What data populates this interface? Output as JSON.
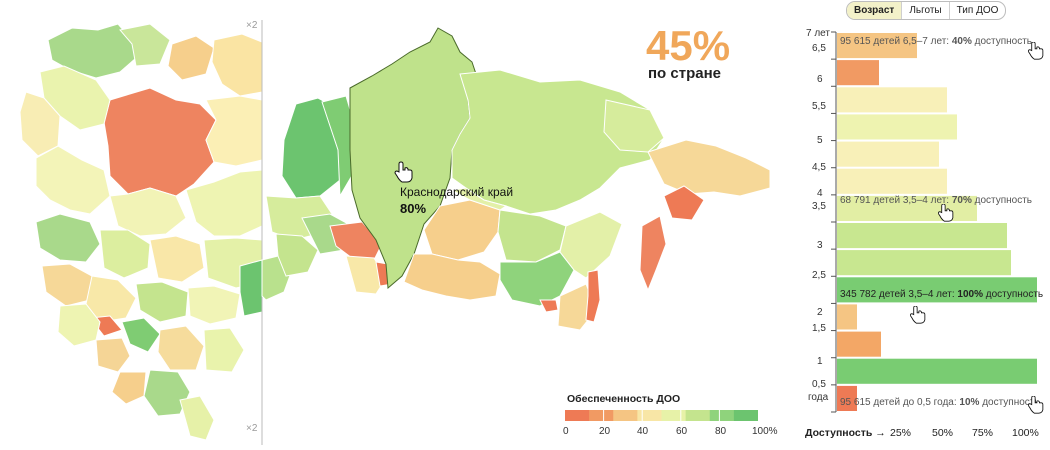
{
  "headline": {
    "value": "45%",
    "label": "по стране"
  },
  "map": {
    "hover_region": "Краснодарский край",
    "hover_value": "80%",
    "scale_markers": [
      "×2",
      "×2"
    ]
  },
  "legend": {
    "title": "Обеспеченность ДОО",
    "ticks": [
      "0",
      "20",
      "40",
      "60",
      "80",
      "100%"
    ],
    "colors": [
      "#ee7a55",
      "#f19a63",
      "#f5c583",
      "#f8e6a6",
      "#e7f2a8",
      "#c4e48e",
      "#8fd37c",
      "#6cc46f"
    ]
  },
  "tabs": [
    {
      "label": "Возраст",
      "active": true
    },
    {
      "label": "Льготы",
      "active": false
    },
    {
      "label": "Тип ДОО",
      "active": false
    }
  ],
  "chart_data": {
    "type": "bar",
    "orientation": "horizontal",
    "y_tick_labels": [
      "7 лет",
      "6,5",
      "6",
      "5,5",
      "5",
      "4,5",
      "4",
      "3,5",
      "3",
      "2,5",
      "2",
      "1,5",
      "1",
      "0,5",
      "года"
    ],
    "x_tick_labels": [
      "25%",
      "50%",
      "75%",
      "100%"
    ],
    "xlabel": "Доступность →",
    "xlim": [
      0,
      100
    ],
    "bars": [
      {
        "age_from": 6.5,
        "age_to": 7.0,
        "value": 40,
        "color": "#f5c583"
      },
      {
        "age_from": 6.0,
        "age_to": 6.5,
        "value": 21,
        "color": "#f19a63"
      },
      {
        "age_from": 5.5,
        "age_to": 6.0,
        "value": 55,
        "color": "#f8f0b8"
      },
      {
        "age_from": 5.0,
        "age_to": 5.5,
        "value": 60,
        "color": "#eef3b0"
      },
      {
        "age_from": 4.5,
        "age_to": 5.0,
        "value": 51,
        "color": "#f8f0b8"
      },
      {
        "age_from": 4.0,
        "age_to": 4.5,
        "value": 55,
        "color": "#f8f0b8"
      },
      {
        "age_from": 3.5,
        "age_to": 4.0,
        "value": 70,
        "color": "#e2eea4"
      },
      {
        "age_from": 3.0,
        "age_to": 3.5,
        "value": 85,
        "color": "#c8e790"
      },
      {
        "age_from": 2.5,
        "age_to": 3.0,
        "value": 87,
        "color": "#c8e790"
      },
      {
        "age_from": 2.0,
        "age_to": 2.5,
        "value": 100,
        "color": "#79cc72"
      },
      {
        "age_from": 1.5,
        "age_to": 2.0,
        "value": 10,
        "color": "#f5c583"
      },
      {
        "age_from": 1.0,
        "age_to": 1.5,
        "value": 22,
        "color": "#f3a766"
      },
      {
        "age_from": 0.5,
        "age_to": 1.0,
        "value": 100,
        "color": "#79cc72"
      },
      {
        "age_from": 0.0,
        "age_to": 0.5,
        "value": 10,
        "color": "#ee7a55"
      }
    ],
    "annotations": [
      {
        "text": "95 615 детей 6,5–7 лет: ",
        "bold": "40%",
        "suffix": " доступность"
      },
      {
        "text": "68 791 детей 3,5–4 лет: ",
        "bold": "70%",
        "suffix": " доступность"
      },
      {
        "text": "345 782 детей 3,5–4 лет: ",
        "bold": "100%",
        "suffix": " доступность"
      },
      {
        "text": "95 615 детей до 0,5 года: ",
        "bold": "10%",
        "suffix": " доступность"
      }
    ]
  }
}
